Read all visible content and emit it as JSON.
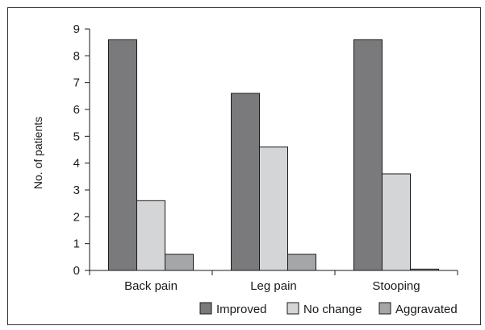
{
  "chart_data": {
    "type": "bar",
    "title": "",
    "xlabel": "",
    "ylabel": "No. of patients",
    "ylim": [
      0,
      9
    ],
    "yticks": [
      "0",
      "1",
      "2",
      "3",
      "4",
      "5",
      "6",
      "7",
      "8",
      "9"
    ],
    "categories": [
      "Back pain",
      "Leg pain",
      "Stooping"
    ],
    "series": [
      {
        "name": "Improved",
        "values": [
          8.6,
          6.6,
          8.6
        ],
        "color": "#7a7a7c"
      },
      {
        "name": "No change",
        "values": [
          2.6,
          4.6,
          3.6
        ],
        "color": "#d4d5d7"
      },
      {
        "name": "Aggravated",
        "values": [
          0.6,
          0.6,
          0.05
        ],
        "color": "#a5a6a8"
      }
    ],
    "grid": false,
    "legend_position": "bottom-right"
  }
}
